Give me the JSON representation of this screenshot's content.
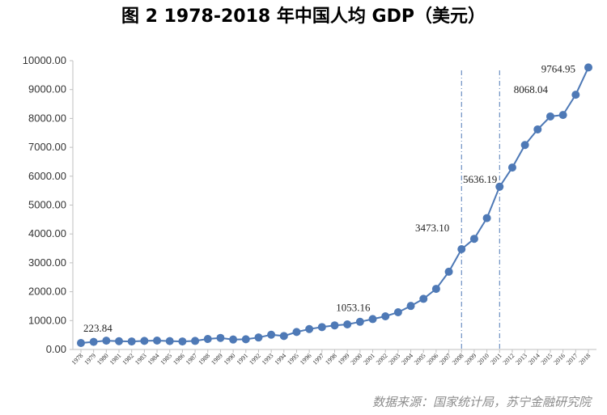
{
  "chart_data": {
    "type": "line",
    "title": "图 2 1978-2018 年中国人均 GDP（美元）",
    "xlabel": "",
    "ylabel": "",
    "ylim": [
      0,
      10000
    ],
    "yticks": [
      "0.00",
      "1000.00",
      "2000.00",
      "3000.00",
      "4000.00",
      "5000.00",
      "6000.00",
      "7000.00",
      "8000.00",
      "9000.00",
      "10000.00"
    ],
    "x": [
      "1978",
      "1979",
      "1980",
      "1981",
      "1982",
      "1983",
      "1984",
      "1985",
      "1986",
      "1987",
      "1988",
      "1989",
      "1990",
      "1991",
      "1992",
      "1993",
      "1994",
      "1995",
      "1996",
      "1997",
      "1998",
      "1999",
      "2000",
      "2001",
      "2002",
      "2003",
      "2004",
      "2005",
      "2006",
      "2007",
      "2008",
      "2009",
      "2010",
      "2011",
      "2012",
      "2013",
      "2014",
      "2015",
      "2016",
      "2017",
      "2018"
    ],
    "series": [
      {
        "values": [
          223.84,
          263,
          305,
          287,
          278,
          298,
          308,
          290,
          278,
          296,
          364,
          400,
          345,
          353,
          415,
          511,
          467,
          605,
          707,
          775,
          835,
          868,
          958,
          1053.16,
          1148,
          1288,
          1508,
          1753,
          2099,
          2693,
          3473.1,
          3832,
          4550,
          5636.19,
          6300,
          7080,
          7620,
          8068.04,
          8120,
          8820,
          9764.95
        ]
      }
    ],
    "data_labels": [
      {
        "index": 0,
        "text": "223.84"
      },
      {
        "index": 23,
        "text": "1053.16"
      },
      {
        "index": 30,
        "text": "3473.10"
      },
      {
        "index": 33,
        "text": "5636.19"
      },
      {
        "index": 37,
        "text": "8068.04"
      },
      {
        "index": 40,
        "text": "9764.95"
      }
    ],
    "reference_lines_x": [
      "2008",
      "2011"
    ],
    "grid": false,
    "color": "#4e79b6"
  },
  "source": "数据来源：国家统计局，苏宁金融研究院"
}
